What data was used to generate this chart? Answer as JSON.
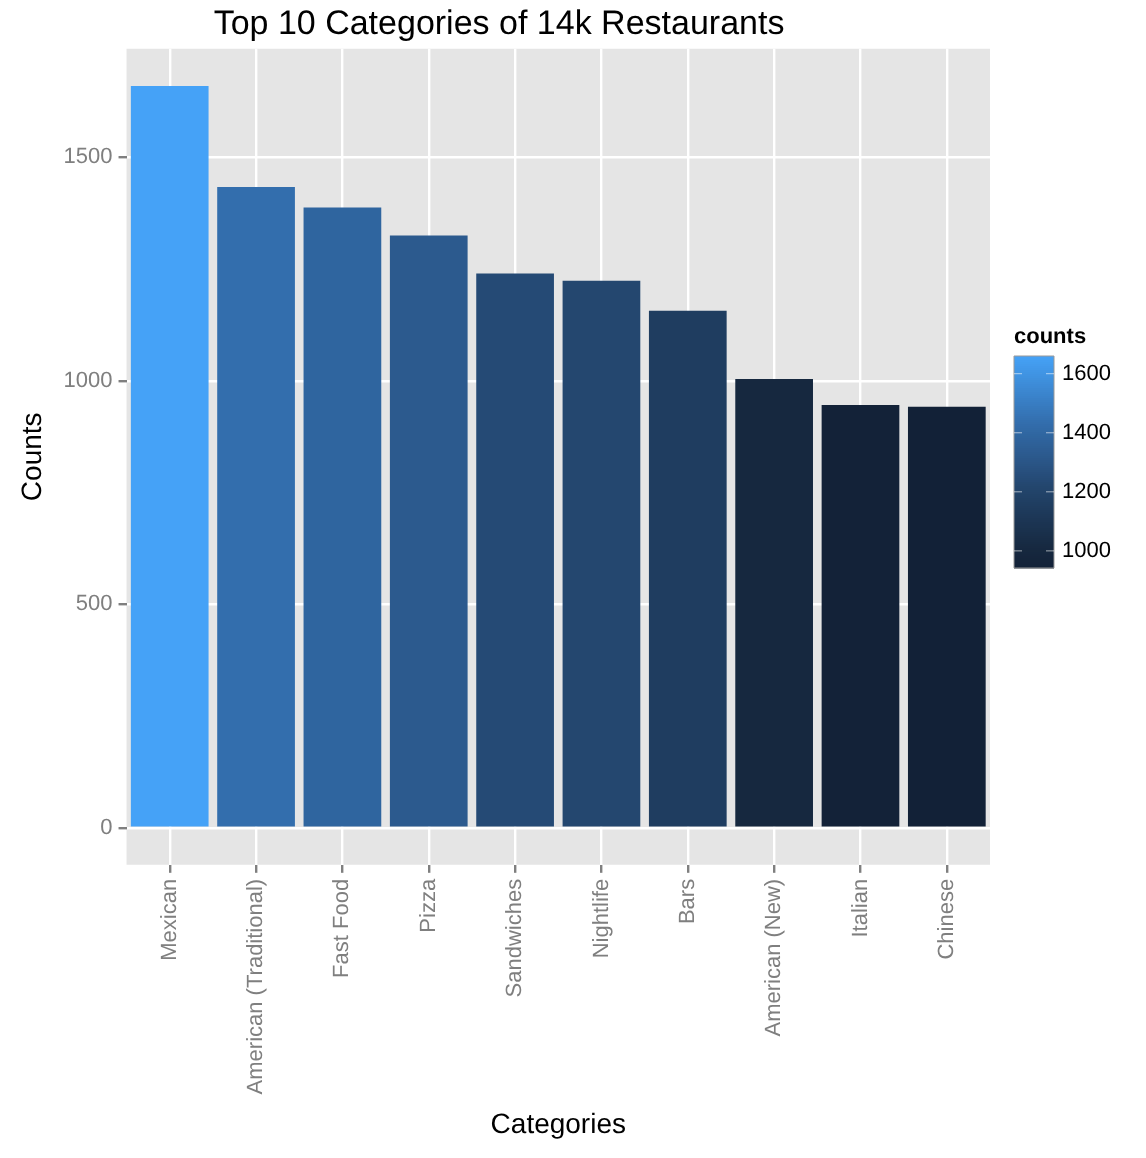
{
  "chart_data": {
    "type": "bar",
    "title": "Top 10 Categories of 14k Restaurants",
    "xlabel": "Categories",
    "ylabel": "Counts",
    "clabel": "counts",
    "categories": [
      "Mexican",
      "American (Traditional)",
      "Fast Food",
      "Pizza",
      "Sandwiches",
      "Nightlife",
      "Bars",
      "American (New)",
      "Italian",
      "Chinese"
    ],
    "values": [
      1660,
      1434,
      1388,
      1325,
      1240,
      1224,
      1157,
      1004,
      946,
      942
    ],
    "colors": [
      "#45a2f7",
      "#336ead",
      "#2f659f",
      "#2c5a8e",
      "#254a75",
      "#24476f",
      "#1f3d60",
      "#16283f",
      "#132238",
      "#122137"
    ],
    "ylim": [
      -83,
      1743
    ],
    "yticks": [
      0,
      500,
      1000,
      1500
    ],
    "grid": true,
    "clim": [
      942,
      1660
    ],
    "cticks": [
      1000,
      1200,
      1400,
      1600
    ]
  }
}
